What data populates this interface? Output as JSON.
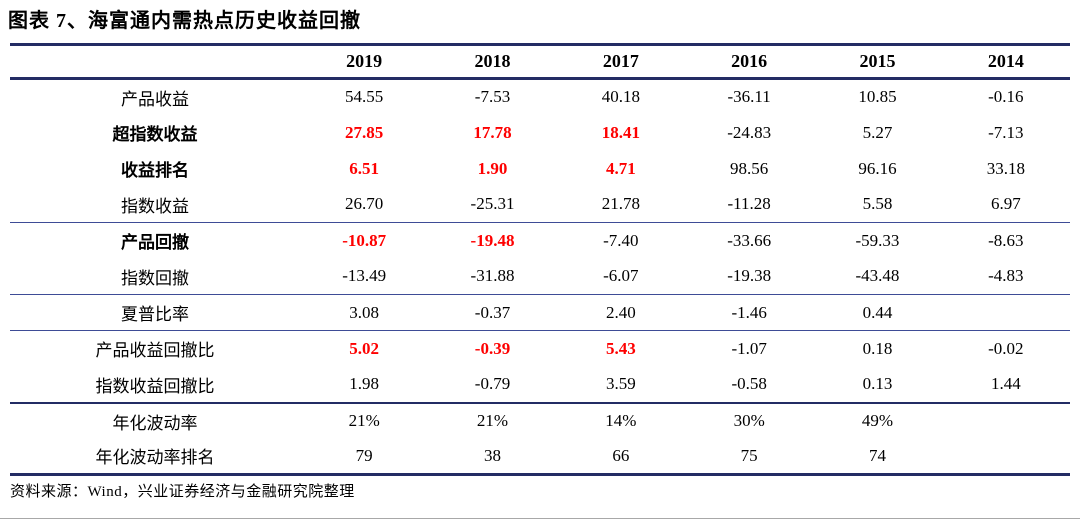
{
  "title": "图表 7、海富通内需热点历史收益回撤",
  "source_note": "资料来源：Wind，兴业证券经济与金融研究院整理",
  "colors": {
    "accent_rule": "#232C64",
    "thin_rule": "#3E4C96",
    "highlight_red": "#FE0000",
    "bottom_rule_gray": "#A8A8A8",
    "text": "#000000"
  },
  "table": {
    "columns": [
      "2019",
      "2018",
      "2017",
      "2016",
      "2015",
      "2014"
    ],
    "sections": [
      {
        "rows": [
          {
            "label": "产品收益",
            "bold": false,
            "cells": [
              {
                "v": "54.55",
                "red": false
              },
              {
                "v": "-7.53",
                "red": false
              },
              {
                "v": "40.18",
                "red": false
              },
              {
                "v": "-36.11",
                "red": false
              },
              {
                "v": "10.85",
                "red": false
              },
              {
                "v": "-0.16",
                "red": false
              }
            ]
          },
          {
            "label": "超指数收益",
            "bold": true,
            "cells": [
              {
                "v": "27.85",
                "red": true
              },
              {
                "v": "17.78",
                "red": true
              },
              {
                "v": "18.41",
                "red": true
              },
              {
                "v": "-24.83",
                "red": false
              },
              {
                "v": "5.27",
                "red": false
              },
              {
                "v": "-7.13",
                "red": false
              }
            ]
          },
          {
            "label": "收益排名",
            "bold": true,
            "cells": [
              {
                "v": "6.51",
                "red": true
              },
              {
                "v": "1.90",
                "red": true
              },
              {
                "v": "4.71",
                "red": true
              },
              {
                "v": "98.56",
                "red": false
              },
              {
                "v": "96.16",
                "red": false
              },
              {
                "v": "33.18",
                "red": false
              }
            ]
          },
          {
            "label": "指数收益",
            "bold": false,
            "cells": [
              {
                "v": "26.70",
                "red": false
              },
              {
                "v": "-25.31",
                "red": false
              },
              {
                "v": "21.78",
                "red": false
              },
              {
                "v": "-11.28",
                "red": false
              },
              {
                "v": "5.58",
                "red": false
              },
              {
                "v": "6.97",
                "red": false
              }
            ]
          }
        ]
      },
      {
        "rows": [
          {
            "label": "产品回撤",
            "bold": true,
            "cells": [
              {
                "v": "-10.87",
                "red": true
              },
              {
                "v": "-19.48",
                "red": true
              },
              {
                "v": "-7.40",
                "red": false
              },
              {
                "v": "-33.66",
                "red": false
              },
              {
                "v": "-59.33",
                "red": false
              },
              {
                "v": "-8.63",
                "red": false
              }
            ]
          },
          {
            "label": "指数回撤",
            "bold": false,
            "cells": [
              {
                "v": "-13.49",
                "red": false
              },
              {
                "v": "-31.88",
                "red": false
              },
              {
                "v": "-6.07",
                "red": false
              },
              {
                "v": "-19.38",
                "red": false
              },
              {
                "v": "-43.48",
                "red": false
              },
              {
                "v": "-4.83",
                "red": false
              }
            ]
          }
        ]
      },
      {
        "rows": [
          {
            "label": "夏普比率",
            "bold": false,
            "cells": [
              {
                "v": "3.08",
                "red": false
              },
              {
                "v": "-0.37",
                "red": false
              },
              {
                "v": "2.40",
                "red": false
              },
              {
                "v": "-1.46",
                "red": false
              },
              {
                "v": "0.44",
                "red": false
              },
              {
                "v": "",
                "red": false
              }
            ]
          }
        ]
      },
      {
        "rows": [
          {
            "label": "产品收益回撤比",
            "bold": false,
            "cells": [
              {
                "v": "5.02",
                "red": true
              },
              {
                "v": "-0.39",
                "red": true
              },
              {
                "v": "5.43",
                "red": true
              },
              {
                "v": "-1.07",
                "red": false
              },
              {
                "v": "0.18",
                "red": false
              },
              {
                "v": "-0.02",
                "red": false
              }
            ]
          },
          {
            "label": "指数收益回撤比",
            "bold": false,
            "cells": [
              {
                "v": "1.98",
                "red": false
              },
              {
                "v": "-0.79",
                "red": false
              },
              {
                "v": "3.59",
                "red": false
              },
              {
                "v": "-0.58",
                "red": false
              },
              {
                "v": "0.13",
                "red": false
              },
              {
                "v": "1.44",
                "red": false
              }
            ]
          }
        ]
      },
      {
        "rows": [
          {
            "label": "年化波动率",
            "bold": false,
            "cells": [
              {
                "v": "21%",
                "red": false
              },
              {
                "v": "21%",
                "red": false
              },
              {
                "v": "14%",
                "red": false
              },
              {
                "v": "30%",
                "red": false
              },
              {
                "v": "49%",
                "red": false
              },
              {
                "v": "",
                "red": false
              }
            ]
          },
          {
            "label": "年化波动率排名",
            "bold": false,
            "cells": [
              {
                "v": "79",
                "red": false
              },
              {
                "v": "38",
                "red": false
              },
              {
                "v": "66",
                "red": false
              },
              {
                "v": "75",
                "red": false
              },
              {
                "v": "74",
                "red": false
              },
              {
                "v": "",
                "red": false
              }
            ]
          }
        ]
      }
    ]
  },
  "chart_data": {
    "type": "table",
    "title": "图表 7、海富通内需热点历史收益回撤",
    "columns": [
      "",
      "2019",
      "2018",
      "2017",
      "2016",
      "2015",
      "2014"
    ],
    "rows": [
      [
        "产品收益",
        54.55,
        -7.53,
        40.18,
        -36.11,
        10.85,
        -0.16
      ],
      [
        "超指数收益",
        27.85,
        17.78,
        18.41,
        -24.83,
        5.27,
        -7.13
      ],
      [
        "收益排名",
        6.51,
        1.9,
        4.71,
        98.56,
        96.16,
        33.18
      ],
      [
        "指数收益",
        26.7,
        -25.31,
        21.78,
        -11.28,
        5.58,
        6.97
      ],
      [
        "产品回撤",
        -10.87,
        -19.48,
        -7.4,
        -33.66,
        -59.33,
        -8.63
      ],
      [
        "指数回撤",
        -13.49,
        -31.88,
        -6.07,
        -19.38,
        -43.48,
        -4.83
      ],
      [
        "夏普比率",
        3.08,
        -0.37,
        2.4,
        -1.46,
        0.44,
        null
      ],
      [
        "产品收益回撤比",
        5.02,
        -0.39,
        5.43,
        -1.07,
        0.18,
        -0.02
      ],
      [
        "指数收益回撤比",
        1.98,
        -0.79,
        3.59,
        -0.58,
        0.13,
        1.44
      ],
      [
        "年化波动率",
        "21%",
        "21%",
        "14%",
        "30%",
        "49%",
        null
      ],
      [
        "年化波动率排名",
        79,
        38,
        66,
        75,
        74,
        null
      ]
    ]
  }
}
